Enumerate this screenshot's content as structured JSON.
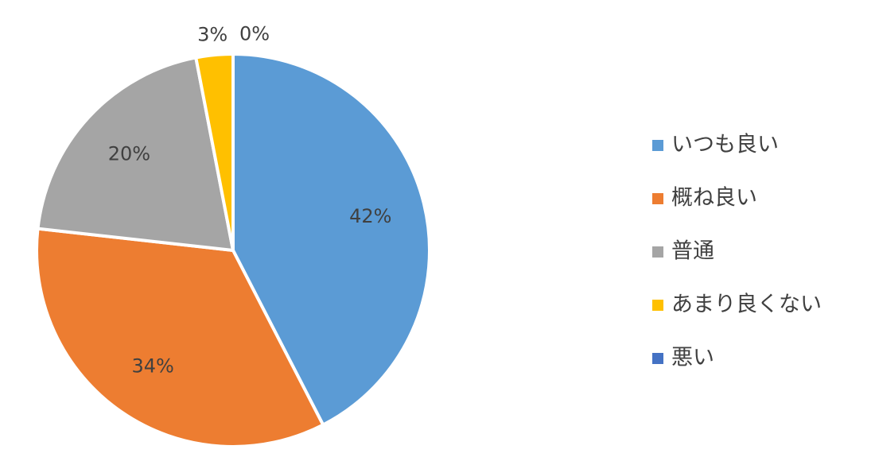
{
  "chart_data": {
    "type": "pie",
    "categories": [
      "いつも良い",
      "概ね良い",
      "普通",
      "あまり良くない",
      "悪い"
    ],
    "values": [
      42,
      34,
      20,
      3,
      0
    ],
    "value_labels": [
      "42%",
      "34%",
      "20%",
      "3%",
      "0%"
    ],
    "colors": [
      "#5b9bd5",
      "#ed7d31",
      "#a5a5a5",
      "#ffc000",
      "#4472c4"
    ],
    "legend": "right"
  }
}
